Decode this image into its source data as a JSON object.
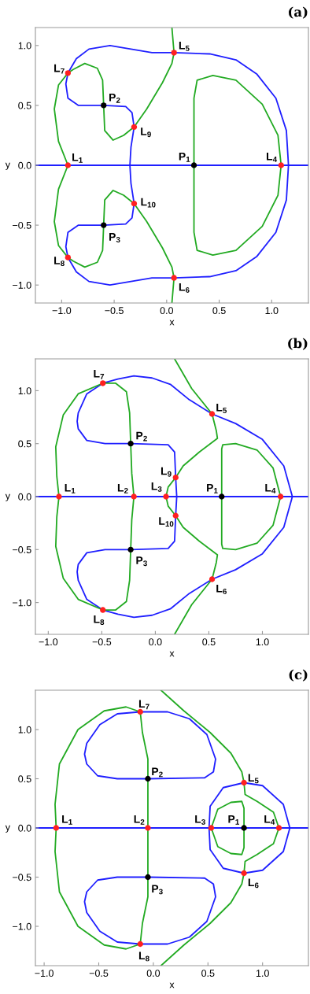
{
  "chart_data": [
    {
      "type": "line",
      "title": "(a)",
      "xlabel": "x",
      "ylabel": "y",
      "xlim": [
        -1.25,
        1.35
      ],
      "ylim": [
        -1.15,
        1.15
      ],
      "xticks": [
        {
          "value": -1.0,
          "label": "−1.0"
        },
        {
          "value": -0.5,
          "label": "−0.5"
        },
        {
          "value": 0.0,
          "label": "0.0"
        },
        {
          "value": 0.5,
          "label": "0.5"
        },
        {
          "value": 1.0,
          "label": "1.0"
        }
      ],
      "yticks": [
        {
          "value": -1.0,
          "label": "−1.0"
        },
        {
          "value": -0.5,
          "label": "−0.5"
        },
        {
          "value": 0.0,
          "label": "0.0"
        },
        {
          "value": 0.5,
          "label": "0.5"
        },
        {
          "value": 1.0,
          "label": "1.0"
        }
      ],
      "ref_lines": [
        {
          "axis": "y",
          "value": 0,
          "color": "#1f1fff"
        }
      ],
      "series": [
        {
          "color": "#1f1fff",
          "x": [
            -0.94,
            -0.86,
            -0.74,
            -0.54,
            -0.34,
            -0.14,
            0.07,
            0.41,
            0.66,
            0.86,
            1.04,
            1.14,
            1.16,
            1.14,
            1.04,
            0.86,
            0.66,
            0.41,
            0.07,
            -0.14,
            -0.34,
            -0.54,
            -0.74,
            -0.86,
            -0.94,
            -0.96,
            -0.94,
            -0.84,
            -0.6,
            -0.39,
            -0.33,
            -0.31,
            -0.34,
            -0.35,
            -0.34,
            -0.31,
            -0.33,
            -0.39,
            -0.6,
            -0.84,
            -0.94,
            -0.96,
            -0.94,
            -0.86
          ],
          "values": [
            0.77,
            0.89,
            0.97,
            1.0,
            0.97,
            0.94,
            0.94,
            0.93,
            0.88,
            0.76,
            0.56,
            0.29,
            0,
            -0.29,
            -0.56,
            -0.76,
            -0.88,
            -0.93,
            -0.94,
            -0.94,
            -0.97,
            -1.0,
            -0.97,
            -0.89,
            -0.77,
            -0.68,
            -0.56,
            -0.5,
            -0.5,
            -0.49,
            -0.44,
            -0.32,
            -0.15,
            0,
            0.15,
            0.32,
            0.44,
            0.49,
            0.5,
            0.5,
            0.56,
            0.68,
            0.77,
            0.89
          ]
        },
        {
          "color": "#22aa22",
          "x": [
            0.05,
            0.07,
            0.05,
            -0.04,
            -0.19,
            -0.31,
            -0.41,
            -0.51,
            -0.59,
            -0.6,
            -0.61,
            -0.66,
            -0.78,
            -0.89,
            -0.94,
            -1.03,
            -1.07,
            -1.03,
            -0.94,
            -1.03,
            -1.07,
            -1.03,
            -0.94,
            -0.89,
            -0.78,
            -0.66,
            -0.61,
            -0.6,
            -0.59,
            -0.51,
            -0.41,
            -0.31,
            -0.19,
            -0.04,
            0.05,
            0.07,
            0.05
          ],
          "values": [
            1.15,
            0.94,
            0.85,
            0.69,
            0.47,
            0.32,
            0.25,
            0.21,
            0.29,
            0.5,
            0.71,
            0.81,
            0.85,
            0.8,
            0.77,
            0.67,
            0.47,
            0.2,
            0,
            -0.2,
            -0.47,
            -0.67,
            -0.77,
            -0.8,
            -0.85,
            -0.81,
            -0.71,
            -0.5,
            -0.29,
            -0.21,
            -0.25,
            -0.32,
            -0.47,
            -0.69,
            -0.85,
            -0.94,
            -1.15
          ]
        },
        {
          "color": "#22aa22",
          "x": [
            0.26,
            0.26,
            0.29,
            0.44,
            0.66,
            0.91,
            1.06,
            1.09,
            1.06,
            0.91,
            0.66,
            0.44,
            0.29,
            0.26,
            0.26,
            0.26
          ],
          "values": [
            0,
            0.56,
            0.71,
            0.75,
            0.71,
            0.51,
            0.25,
            0,
            -0.25,
            -0.51,
            -0.71,
            -0.75,
            -0.71,
            -0.56,
            0,
            0.56
          ]
        },
        {
          "type": "scatter",
          "color": "#ff2020",
          "marker": "circle",
          "x": [
            -0.94,
            1.09,
            0.07,
            0.07,
            -0.94,
            -0.94,
            -0.31,
            -0.31
          ],
          "values": [
            0,
            0,
            0.94,
            -0.94,
            0.77,
            -0.77,
            0.32,
            -0.32
          ]
        },
        {
          "type": "scatter",
          "color": "#000000",
          "marker": "circle",
          "x": [
            0.26,
            -0.6,
            -0.6
          ],
          "values": [
            0,
            0.5,
            -0.5
          ]
        }
      ],
      "annotations": [
        {
          "text": "L$_{1}$",
          "x": -0.94,
          "y": 0
        },
        {
          "text": "L$_{4}$",
          "x": 1.09,
          "y": 0
        },
        {
          "text": "L$_{5}$",
          "x": 0.07,
          "y": 0.94
        },
        {
          "text": "L$_{6}$",
          "x": 0.07,
          "y": -0.94
        },
        {
          "text": "L$_{7}$",
          "x": -0.94,
          "y": 0.77
        },
        {
          "text": "L$_{8}$",
          "x": -0.94,
          "y": -0.77
        },
        {
          "text": "L$_{9}$",
          "x": -0.31,
          "y": 0.32
        },
        {
          "text": "L$_{10}$",
          "x": -0.31,
          "y": -0.32
        },
        {
          "text": "P$_{1}$",
          "x": 0.26,
          "y": 0
        },
        {
          "text": "P$_{2}$",
          "x": -0.6,
          "y": 0.5
        },
        {
          "text": "P$_{3}$",
          "x": -0.6,
          "y": -0.5
        }
      ]
    },
    {
      "type": "line",
      "title": "(b)",
      "xlabel": "x",
      "ylabel": "y",
      "xlim": [
        -1.12,
        1.43
      ],
      "ylim": [
        -1.3,
        1.3
      ],
      "xticks": [
        {
          "value": -1.0,
          "label": "−1.0"
        },
        {
          "value": -0.5,
          "label": "−0.5"
        },
        {
          "value": 0.0,
          "label": "0.0"
        },
        {
          "value": 0.5,
          "label": "0.5"
        },
        {
          "value": 1.0,
          "label": "1.0"
        }
      ],
      "yticks": [
        {
          "value": -1.0,
          "label": "−1.0"
        },
        {
          "value": -0.5,
          "label": "−0.5"
        },
        {
          "value": 0.0,
          "label": "0.0"
        },
        {
          "value": 0.5,
          "label": "0.5"
        },
        {
          "value": 1.0,
          "label": "1.0"
        }
      ],
      "ref_lines": [
        {
          "axis": "y",
          "value": 0,
          "color": "#1f1fff"
        }
      ],
      "series": [
        {
          "color": "#1f1fff",
          "x": [
            -0.49,
            -0.35,
            -0.2,
            -0.03,
            0.14,
            0.31,
            0.53,
            0.75,
            1.0,
            1.2,
            1.28,
            1.2,
            1.0,
            0.75,
            0.53,
            0.31,
            0.14,
            -0.03,
            -0.2,
            -0.35,
            -0.49,
            -0.64,
            -0.72,
            -0.73,
            -0.72,
            -0.64,
            -0.47,
            -0.23,
            0.12,
            0.18,
            0.19,
            0.2,
            0.19,
            0.18,
            0.12,
            -0.23,
            -0.47,
            -0.64,
            -0.72,
            -0.73,
            -0.72,
            -0.64,
            -0.49,
            -0.35
          ],
          "values": [
            1.07,
            1.11,
            1.14,
            1.12,
            1.06,
            0.92,
            0.78,
            0.69,
            0.54,
            0.29,
            0,
            -0.29,
            -0.54,
            -0.69,
            -0.78,
            -0.92,
            -1.06,
            -1.12,
            -1.14,
            -1.11,
            -1.07,
            -0.97,
            -0.79,
            -0.71,
            -0.64,
            -0.53,
            -0.5,
            -0.5,
            -0.49,
            -0.42,
            -0.18,
            0,
            0.18,
            0.42,
            0.49,
            0.5,
            0.5,
            0.53,
            0.64,
            0.71,
            0.79,
            0.97,
            1.07,
            1.11
          ]
        },
        {
          "color": "#22aa22",
          "x": [
            -0.49,
            -0.72,
            -0.86,
            -0.93,
            -0.92,
            -0.9,
            -0.92,
            -0.93,
            -0.86,
            -0.72,
            -0.49,
            -0.37,
            -0.27,
            -0.24,
            -0.23,
            -0.22,
            -0.2,
            -0.22,
            -0.23,
            -0.24,
            -0.27,
            -0.37,
            -0.49,
            -0.72
          ],
          "values": [
            1.07,
            0.97,
            0.77,
            0.47,
            0.19,
            0,
            -0.19,
            -0.47,
            -0.77,
            -0.97,
            -1.07,
            -1.07,
            -0.99,
            -0.79,
            -0.5,
            -0.22,
            0,
            0.22,
            0.5,
            0.79,
            0.99,
            1.07,
            1.07,
            0.97
          ]
        },
        {
          "color": "#22aa22",
          "x": [
            0.18,
            0.34,
            0.53,
            0.57,
            0.58,
            0.41,
            0.26,
            0.19,
            0.12,
            0.1,
            0.12,
            0.19,
            0.26,
            0.41,
            0.58,
            0.57,
            0.53,
            0.34,
            0.18
          ],
          "values": [
            1.3,
            1.02,
            0.78,
            0.62,
            0.55,
            0.42,
            0.29,
            0.18,
            0.09,
            0,
            -0.09,
            -0.18,
            -0.29,
            -0.42,
            -0.55,
            -0.62,
            -0.78,
            -1.02,
            -1.3
          ]
        },
        {
          "color": "#22aa22",
          "x": [
            0.62,
            0.62,
            0.63,
            0.75,
            0.95,
            1.1,
            1.17,
            1.1,
            0.95,
            0.75,
            0.63,
            0.62,
            0.62,
            0.62
          ],
          "values": [
            0,
            0.45,
            0.49,
            0.5,
            0.44,
            0.27,
            0,
            -0.27,
            -0.44,
            -0.5,
            -0.49,
            -0.45,
            0,
            0.45
          ]
        },
        {
          "type": "scatter",
          "color": "#ff2020",
          "marker": "circle",
          "x": [
            -0.9,
            -0.2,
            0.1,
            1.17,
            0.53,
            0.53,
            -0.49,
            -0.49,
            0.19,
            0.19
          ],
          "values": [
            0,
            0,
            0,
            0,
            0.78,
            -0.78,
            1.07,
            -1.07,
            0.18,
            -0.18
          ]
        },
        {
          "type": "scatter",
          "color": "#000000",
          "marker": "circle",
          "x": [
            0.62,
            -0.23,
            -0.23
          ],
          "values": [
            0,
            0.5,
            -0.5
          ]
        }
      ],
      "annotations": [
        {
          "text": "L$_{1}$",
          "x": -0.9,
          "y": 0
        },
        {
          "text": "L$_{2}$",
          "x": -0.2,
          "y": 0
        },
        {
          "text": "L$_{3}$",
          "x": 0.1,
          "y": 0
        },
        {
          "text": "L$_{4}$",
          "x": 1.17,
          "y": 0
        },
        {
          "text": "L$_{5}$",
          "x": 0.53,
          "y": 0.78
        },
        {
          "text": "L$_{6}$",
          "x": 0.53,
          "y": -0.78
        },
        {
          "text": "L$_{7}$",
          "x": -0.49,
          "y": 1.07
        },
        {
          "text": "L$_{8}$",
          "x": -0.49,
          "y": -1.07
        },
        {
          "text": "L$_{9}$",
          "x": 0.19,
          "y": 0.18
        },
        {
          "text": "L$_{10}$",
          "x": 0.19,
          "y": -0.18
        },
        {
          "text": "P$_{1}$",
          "x": 0.62,
          "y": 0
        },
        {
          "text": "P$_{2}$",
          "x": -0.23,
          "y": 0.5
        },
        {
          "text": "P$_{3}$",
          "x": -0.23,
          "y": -0.5
        }
      ]
    },
    {
      "type": "line",
      "title": "(c)",
      "xlabel": "x",
      "ylabel": "y",
      "xlim": [
        -1.08,
        1.42
      ],
      "ylim": [
        -1.4,
        1.4
      ],
      "xticks": [
        {
          "value": -1.0,
          "label": "−1.0"
        },
        {
          "value": -0.5,
          "label": "−0.5"
        },
        {
          "value": 0.0,
          "label": "0.0"
        },
        {
          "value": 0.5,
          "label": "0.5"
        },
        {
          "value": 1.0,
          "label": "1.0"
        }
      ],
      "yticks": [
        {
          "value": -1.0,
          "label": "−1.0"
        },
        {
          "value": -0.5,
          "label": "−0.5"
        },
        {
          "value": 0.0,
          "label": "0.0"
        },
        {
          "value": 0.5,
          "label": "0.5"
        },
        {
          "value": 1.0,
          "label": "1.0"
        }
      ],
      "ref_lines": [
        {
          "axis": "y",
          "value": 0,
          "color": "#1f1fff"
        }
      ],
      "series": [
        {
          "color": "#1f1fff",
          "x": [
            -0.05,
            0.47,
            0.55,
            0.57,
            0.49,
            0.33,
            0.13,
            -0.12,
            -0.33,
            -0.49,
            -0.61,
            -0.63,
            -0.61,
            -0.51,
            -0.33,
            -0.05,
            0.47
          ],
          "values": [
            0.5,
            0.51,
            0.57,
            0.7,
            0.95,
            1.11,
            1.18,
            1.18,
            1.16,
            1.05,
            0.86,
            0.75,
            0.65,
            0.53,
            0.5,
            0.5,
            0.51
          ]
        },
        {
          "color": "#1f1fff",
          "x": [
            -0.05,
            0.47,
            0.55,
            0.57,
            0.49,
            0.33,
            0.13,
            -0.12,
            -0.33,
            -0.49,
            -0.61,
            -0.63,
            -0.61,
            -0.51,
            -0.33,
            -0.05,
            0.47
          ],
          "values": [
            -0.5,
            -0.51,
            -0.57,
            -0.7,
            -0.95,
            -1.11,
            -1.18,
            -1.18,
            -1.16,
            -1.05,
            -0.86,
            -0.75,
            -0.65,
            -0.53,
            -0.5,
            -0.5,
            -0.51
          ]
        },
        {
          "color": "#1f1fff",
          "x": [
            0.51,
            0.52,
            0.64,
            0.83,
            1.0,
            1.19,
            1.25,
            1.19,
            1.0,
            0.83,
            0.64,
            0.52,
            0.51,
            0.52
          ],
          "values": [
            0,
            0.22,
            0.41,
            0.46,
            0.43,
            0.24,
            0,
            -0.24,
            -0.43,
            -0.46,
            -0.41,
            -0.22,
            0,
            0.22
          ]
        },
        {
          "color": "#22aa22",
          "x": [
            -0.12,
            -0.25,
            -0.45,
            -0.69,
            -0.86,
            -0.9,
            -0.89,
            -0.9,
            -0.86,
            -0.69,
            -0.45,
            -0.25,
            -0.12,
            -0.1,
            -0.05,
            -0.05,
            -0.05,
            -0.05,
            -0.05,
            -0.1,
            -0.12,
            -0.25
          ],
          "values": [
            1.18,
            1.23,
            1.19,
            1.0,
            0.65,
            0.24,
            0,
            -0.24,
            -0.65,
            -1.0,
            -1.19,
            -1.23,
            -1.18,
            -0.97,
            -0.7,
            -0.5,
            0,
            0.5,
            0.7,
            0.97,
            1.18,
            1.23
          ]
        },
        {
          "color": "#22aa22",
          "x": [
            0.07,
            0.28,
            0.52,
            0.71,
            0.81,
            0.83,
            0.84,
            0.95,
            1.1,
            1.15,
            1.1,
            0.95,
            0.84,
            0.83,
            0.81,
            0.71,
            0.52,
            0.28,
            0.07
          ],
          "values": [
            1.4,
            1.19,
            0.97,
            0.76,
            0.57,
            0.46,
            0.34,
            0.27,
            0.16,
            0,
            -0.16,
            -0.27,
            -0.34,
            -0.46,
            -0.57,
            -0.76,
            -0.97,
            -1.19,
            -1.4
          ]
        },
        {
          "color": "#22aa22",
          "x": [
            0.53,
            0.59,
            0.71,
            0.81,
            0.83,
            0.83,
            0.83,
            0.81,
            0.71,
            0.59,
            0.53,
            0.59
          ],
          "values": [
            0,
            0.19,
            0.26,
            0.27,
            0.2,
            0,
            -0.2,
            -0.27,
            -0.26,
            -0.19,
            0,
            0.19
          ]
        },
        {
          "type": "scatter",
          "color": "#ff2020",
          "marker": "circle",
          "x": [
            -0.89,
            -0.05,
            0.53,
            1.15,
            0.83,
            0.83,
            -0.12,
            -0.12
          ],
          "values": [
            0,
            0,
            0,
            0,
            0.46,
            -0.46,
            1.18,
            -1.18
          ]
        },
        {
          "type": "scatter",
          "color": "#000000",
          "marker": "circle",
          "x": [
            0.83,
            -0.05,
            -0.05
          ],
          "values": [
            0,
            0.5,
            -0.5
          ]
        }
      ],
      "annotations": [
        {
          "text": "L$_{1}$",
          "x": -0.89,
          "y": 0
        },
        {
          "text": "L$_{2}$",
          "x": -0.05,
          "y": 0
        },
        {
          "text": "L$_{3}$",
          "x": 0.53,
          "y": 0
        },
        {
          "text": "L$_{4}$",
          "x": 1.15,
          "y": 0
        },
        {
          "text": "L$_{5}$",
          "x": 0.83,
          "y": 0.46
        },
        {
          "text": "L$_{6}$",
          "x": 0.83,
          "y": -0.46
        },
        {
          "text": "L$_{7}$",
          "x": -0.12,
          "y": 1.18
        },
        {
          "text": "L$_{8}$",
          "x": -0.12,
          "y": -1.18
        },
        {
          "text": "P$_{1}$",
          "x": 0.83,
          "y": 0
        },
        {
          "text": "P$_{2}$",
          "x": -0.05,
          "y": 0.5
        },
        {
          "text": "P$_{3}$",
          "x": -0.05,
          "y": -0.5
        }
      ]
    }
  ]
}
